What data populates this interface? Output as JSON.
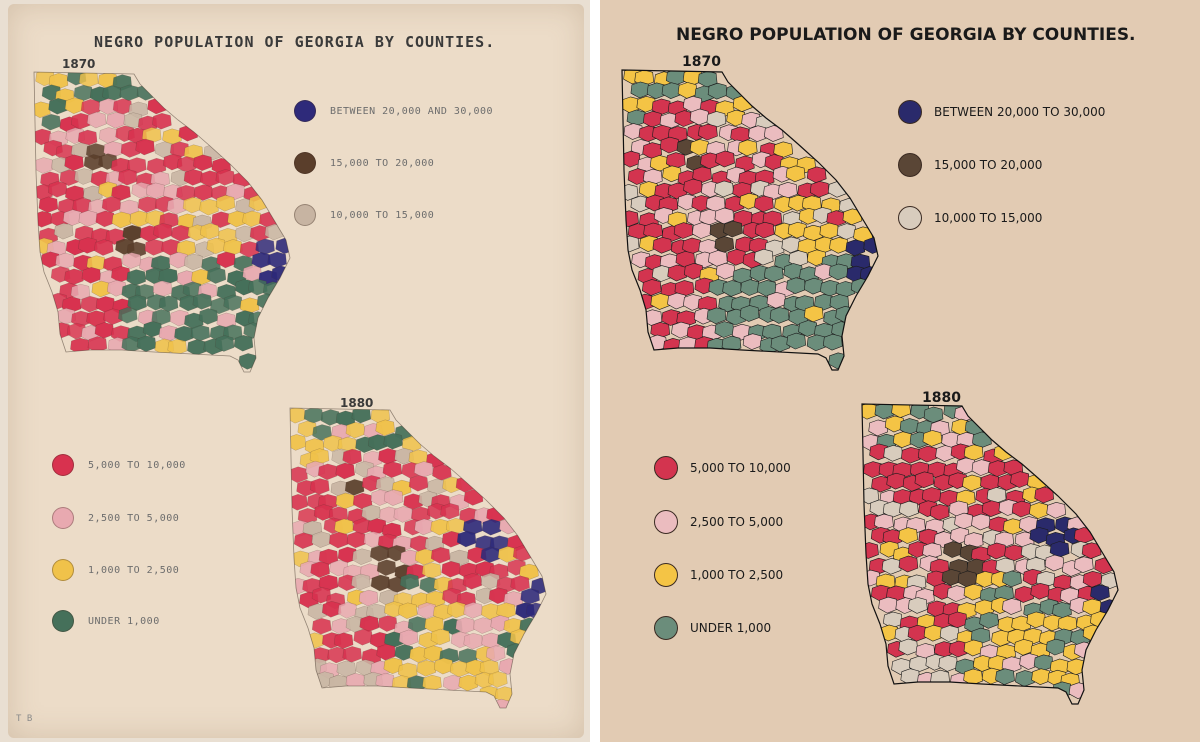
{
  "original": {
    "title": "NEGRO POPULATION OF GEORGIA BY COUNTIES.",
    "year_1870": "1870",
    "year_1880": "1880",
    "legend_top": [
      {
        "label": "BETWEEN 20,000 AND 30,000",
        "color": "#2e2a7a"
      },
      {
        "label": "15,000 TO 20,000",
        "color": "#5a3e2b"
      },
      {
        "label": "10,000 TO 15,000",
        "color": "#c7b4a2"
      }
    ],
    "legend_bottom": [
      {
        "label": "5,000 TO 10,000",
        "color": "#d8324f"
      },
      {
        "label": "2,500 TO 5,000",
        "color": "#e8a9b0"
      },
      {
        "label": "1,000 TO 2,500",
        "color": "#f0c24a"
      },
      {
        "label": "UNDER 1,000",
        "color": "#45705a"
      }
    ],
    "corner_mark": "T B"
  },
  "recreation": {
    "title": "NEGRO POPULATION OF GEORGIA BY COUNTIES.",
    "year_1870": "1870",
    "year_1880": "1880",
    "legend_top": [
      {
        "label": "BETWEEN 20,000 TO 30,000",
        "color": "#2a2a6b"
      },
      {
        "label": "15,000 TO 20,000",
        "color": "#5a4636"
      },
      {
        "label": "10,000 TO 15,000",
        "color": "#d8ccbd"
      }
    ],
    "legend_bottom": [
      {
        "label": "5,000 TO 10,000",
        "color": "#d3344f"
      },
      {
        "label": "2,500 TO 5,000",
        "color": "#ebbcbf"
      },
      {
        "label": "1,000 TO 2,500",
        "color": "#f4c445"
      },
      {
        "label": "UNDER 1,000",
        "color": "#6b8d7b"
      }
    ]
  },
  "palette": {
    "c20k": "#2e2a7a",
    "c15k": "#5a3e2b",
    "c10k": "#c9b6a4",
    "c5k": "#d8324f",
    "c2k5": "#e8a9b0",
    "c1k": "#f0c24a",
    "cu1k": "#45705a",
    "c20k_r": "#2a2a6b",
    "c15k_r": "#5a4636",
    "c10k_r": "#d8ccbd",
    "c5k_r": "#d3344f",
    "c2k5_r": "#ebbcbf",
    "c1k_r": "#f4c445",
    "cu1k_r": "#6b8d7b"
  }
}
